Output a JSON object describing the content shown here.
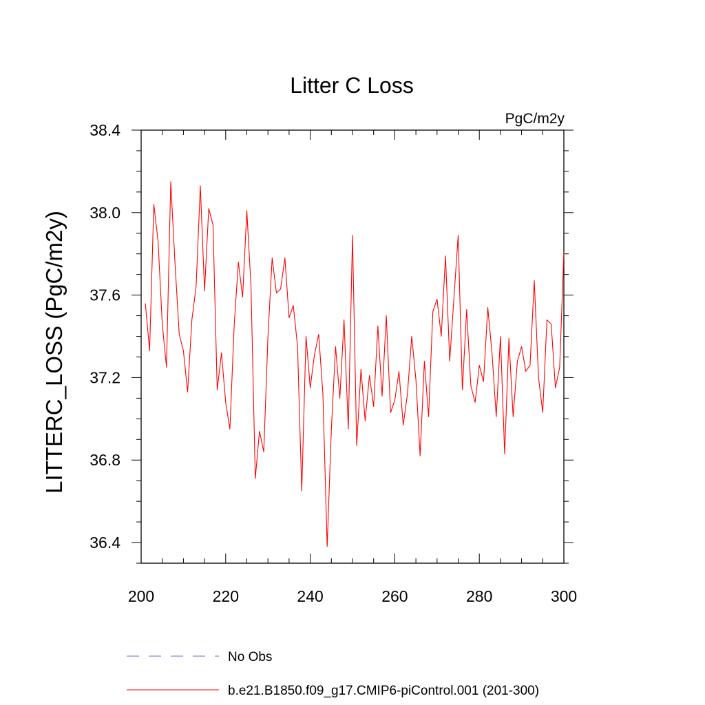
{
  "chart_data": {
    "type": "line",
    "title": "Litter C Loss",
    "units_label": "PgC/m2y",
    "xlabel": "",
    "ylabel": "LITTERC_LOSS  (PgC/m2y)",
    "xlim": [
      200,
      300
    ],
    "ylim": [
      36.3,
      38.4
    ],
    "x_ticks": [
      200,
      220,
      240,
      260,
      280,
      300
    ],
    "x_tick_labels": [
      "200",
      "220",
      "240",
      "260",
      "280",
      "300"
    ],
    "y_ticks": [
      36.4,
      36.8,
      37.2,
      37.6,
      38.0,
      38.4
    ],
    "y_tick_labels": [
      "36.4",
      "36.8",
      "37.2",
      "37.6",
      "38.0",
      "38.4"
    ],
    "grid": false,
    "legend_placement": "bottom",
    "legend": [
      {
        "label": "No Obs",
        "color": "#6a6ad0",
        "style": "dashed"
      },
      {
        "label": "b.e21.B1850.f09_g17.CMIP6-piControl.001 (201-300)",
        "color": "#ff0000",
        "style": "solid"
      }
    ],
    "series": [
      {
        "name": "b.e21.B1850.f09_g17.CMIP6-piControl.001 (201-300)",
        "color": "#ff0000",
        "x": [
          201,
          202,
          203,
          204,
          205,
          206,
          207,
          208,
          209,
          210,
          211,
          212,
          213,
          214,
          215,
          216,
          217,
          218,
          219,
          220,
          221,
          222,
          223,
          224,
          225,
          226,
          227,
          228,
          229,
          230,
          231,
          232,
          233,
          234,
          235,
          236,
          237,
          238,
          239,
          240,
          241,
          242,
          243,
          244,
          245,
          246,
          247,
          248,
          249,
          250,
          251,
          252,
          253,
          254,
          255,
          256,
          257,
          258,
          259,
          260,
          261,
          262,
          263,
          264,
          265,
          266,
          267,
          268,
          269,
          270,
          271,
          272,
          273,
          274,
          275,
          276,
          277,
          278,
          279,
          280,
          281,
          282,
          283,
          284,
          285,
          286,
          287,
          288,
          289,
          290,
          291,
          292,
          293,
          294,
          295,
          296,
          297,
          298,
          299,
          300
        ],
        "y": [
          37.56,
          37.33,
          38.04,
          37.86,
          37.46,
          37.25,
          38.15,
          37.76,
          37.41,
          37.33,
          37.13,
          37.48,
          37.64,
          38.13,
          37.62,
          38.02,
          37.94,
          37.14,
          37.32,
          37.08,
          36.95,
          37.45,
          37.76,
          37.59,
          38.01,
          37.64,
          36.71,
          36.94,
          36.84,
          37.4,
          37.78,
          37.61,
          37.63,
          37.78,
          37.49,
          37.55,
          37.35,
          36.65,
          37.4,
          37.15,
          37.31,
          37.41,
          37.12,
          36.38,
          36.95,
          37.35,
          37.1,
          37.48,
          36.95,
          37.89,
          36.87,
          37.24,
          36.99,
          37.21,
          37.06,
          37.45,
          37.11,
          37.5,
          37.03,
          37.09,
          37.23,
          36.97,
          37.12,
          37.4,
          37.19,
          36.82,
          37.28,
          37.01,
          37.52,
          37.58,
          37.4,
          37.79,
          37.28,
          37.59,
          37.89,
          37.14,
          37.53,
          37.16,
          37.08,
          37.26,
          37.18,
          37.54,
          37.32,
          37.01,
          37.4,
          36.83,
          37.39,
          37.01,
          37.28,
          37.35,
          37.23,
          37.26,
          37.67,
          37.2,
          37.03,
          37.48,
          37.46,
          37.15,
          37.25,
          37.81
        ]
      }
    ]
  }
}
